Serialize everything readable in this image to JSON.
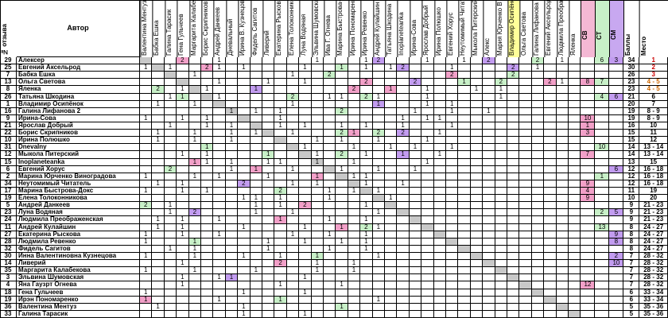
{
  "header": {
    "num_label": "№ отзыва",
    "author_label": "Автор",
    "score_cols": [
      "СВ",
      "СТ",
      "СМ"
    ],
    "points_label": "Баллы",
    "place_label": "Место"
  },
  "judges": [
    "Валентина Ментуз",
    "Бабка Ешка",
    "Галина Тарасик",
    "Гена Гульчеев",
    "Маргарита Калабекова",
    "Борис Скрипников",
    "Андрей Данкеев",
    "Дневальный",
    "Ирина В. Кузнецова",
    "Фидель Сагитов",
    "Ливерий",
    "Екатерина Рыскова",
    "Елена Толоконникова",
    "Луна Водяная",
    "Эльвина Шумовская",
    "Ива Г. Огнева",
    "Марина Быстрова-Д",
    "Ирина Пономаренко",
    "Ирина Ревенко",
    "Андрей Кулайшин",
    "Татьяна Шкодина",
    "Inoplaneteanka",
    "Ирина-Сова",
    "Ярослав Добрый",
    "Ирина Полюшко",
    "Евгений Хорус",
    "Неутомимый Читат",
    "Мыкола Питерский",
    "Алекс",
    "Мария Юрченко В",
    "Владимир Осипёнок",
    "Ольга Светова",
    "Галина Лифанова",
    "Евгений Аксельрод",
    "Людмила Преображ",
    "Яленка"
  ],
  "colors": {
    "pink": "#f2a0c8",
    "lavender": "#c29cf0",
    "green": "#c8f0c8",
    "gray": "#c8c8c8",
    "yellow_header": "#ffff99",
    "cv_header": "#f4b8d4",
    "ct_header": "#c8f0c8",
    "cm_header": "#c8a8f0",
    "orange_place": "#cc6600",
    "red_place": "#cc0000"
  },
  "rows": [
    {
      "num": "29",
      "author": "Алексер",
      "points": "34",
      "place": "1",
      "cv": "",
      "ct": "6",
      "cm": "3"
    },
    {
      "num": "25",
      "author": "Евгений Аксельрод",
      "points": "30",
      "place": "2",
      "cv": "",
      "ct": "",
      "cm": ""
    },
    {
      "num": "7",
      "author": "Бабка Ешка",
      "points": "26",
      "place": "3",
      "cv": "",
      "ct": "",
      "cm": ""
    },
    {
      "num": "13",
      "author": "Ольга Светова",
      "points": "23",
      "place": "4 - 5",
      "cv": "8",
      "ct": "7",
      "cm": ""
    },
    {
      "num": "8",
      "author": "Яленка",
      "points": "23",
      "place": "4 - 5",
      "cv": "",
      "ct": "",
      "cm": ""
    },
    {
      "num": "26",
      "author": "Татьяна Шкодина",
      "points": "21",
      "place": "6",
      "cv": "",
      "ct": "4",
      "cm": "6"
    },
    {
      "num": "1",
      "author": "Владимир Осипёнок",
      "points": "20",
      "place": "7",
      "cv": "",
      "ct": "",
      "cm": ""
    },
    {
      "num": "16",
      "author": "Галина Лифанова 2",
      "points": "19",
      "place": "8 - 9",
      "cv": "",
      "ct": "",
      "cm": ""
    },
    {
      "num": "9",
      "author": "Ирина-Сова",
      "points": "19",
      "place": "8 - 9",
      "cv": "10",
      "ct": "",
      "cm": ""
    },
    {
      "num": "21",
      "author": "Ярослав Добрый",
      "points": "16",
      "place": "10",
      "cv": "1",
      "ct": "",
      "cm": ""
    },
    {
      "num": "22",
      "author": "Борис Скрипников",
      "points": "15",
      "place": "11",
      "cv": "3",
      "ct": "",
      "cm": ""
    },
    {
      "num": "10",
      "author": "Ирина Полюшко",
      "points": "15",
      "place": "12",
      "cv": "",
      "ct": "",
      "cm": ""
    },
    {
      "num": "31",
      "author": "Dnevalny",
      "points": "14",
      "place": "13 - 14",
      "cv": "",
      "ct": "10",
      "cm": ""
    },
    {
      "num": "12",
      "author": "Мыкола Питерский",
      "points": "14",
      "place": "13 - 14",
      "cv": "7",
      "ct": "",
      "cm": ""
    },
    {
      "num": "15",
      "author": "Inoplaneteanka",
      "points": "13",
      "place": "15",
      "cv": "",
      "ct": "",
      "cm": ""
    },
    {
      "num": "6",
      "author": "Евгений Хорус",
      "points": "12",
      "place": "16 - 18",
      "cv": "",
      "ct": "",
      "cm": "6"
    },
    {
      "num": "2",
      "author": "Марина Юрченко Виноградова",
      "points": "12",
      "place": "16 - 18",
      "cv": "",
      "ct": "1",
      "cm": ""
    },
    {
      "num": "34",
      "author": "Неутомимый Читатель",
      "points": "12",
      "place": "16 - 18",
      "cv": "9",
      "ct": "",
      "cm": ""
    },
    {
      "num": "17",
      "author": "Марина Быстрова-Докс",
      "points": "11",
      "place": "19",
      "cv": "4",
      "ct": "",
      "cm": ""
    },
    {
      "num": "19",
      "author": "Елена Толоконникова",
      "points": "10",
      "place": "20",
      "cv": "9",
      "ct": "",
      "cm": ""
    },
    {
      "num": "5",
      "author": "Андрей Данкеев",
      "points": "9",
      "place": "21 - 23",
      "cv": "",
      "ct": "",
      "cm": ""
    },
    {
      "num": "23",
      "author": "Луна Водяная",
      "points": "9",
      "place": "21 - 23",
      "cv": "",
      "ct": "2",
      "cm": "5"
    },
    {
      "num": "24",
      "author": "Людмила Преображенская",
      "points": "9",
      "place": "21 - 23",
      "cv": "",
      "ct": "",
      "cm": ""
    },
    {
      "num": "11",
      "author": "Андрей Кулайшин",
      "points": "8",
      "place": "24 - 27",
      "cv": "",
      "ct": "13",
      "cm": ""
    },
    {
      "num": "27",
      "author": "Екатерина Рыскова",
      "points": "8",
      "place": "24 - 27",
      "cv": "",
      "ct": "",
      "cm": "9"
    },
    {
      "num": "28",
      "author": "Людмила Ревенко",
      "points": "8",
      "place": "24 - 27",
      "cv": "",
      "ct": "",
      "cm": "8"
    },
    {
      "num": "32",
      "author": "Фидель Сагитов",
      "points": "8",
      "place": "24 - 27",
      "cv": "",
      "ct": "",
      "cm": ""
    },
    {
      "num": "30",
      "author": "Инна Валентиновна Кузнецова",
      "points": "7",
      "place": "28 - 32",
      "cv": "",
      "ct": "",
      "cm": "2"
    },
    {
      "num": "14",
      "author": "Ливерий",
      "points": "7",
      "place": "28 - 32",
      "cv": "",
      "ct": "",
      "cm": "10"
    },
    {
      "num": "35",
      "author": "Маргарита Калабекова",
      "points": "7",
      "place": "28 - 32",
      "cv": "",
      "ct": "",
      "cm": ""
    },
    {
      "num": "3",
      "author": "Эльвина Шумовская",
      "points": "7",
      "place": "28 - 32",
      "cv": "",
      "ct": "",
      "cm": ""
    },
    {
      "num": "4",
      "author": "Яна Гаузрт Огнева",
      "points": "7",
      "place": "28 - 32",
      "cv": "12",
      "ct": "",
      "cm": ""
    },
    {
      "num": "18",
      "author": "Гена Гульчеев",
      "points": "6",
      "place": "33 - 34",
      "cv": "",
      "ct": "",
      "cm": ""
    },
    {
      "num": "19",
      "author": "Ирэн Пономаренко",
      "points": "6",
      "place": "33 - 34",
      "cv": "",
      "ct": "",
      "cm": ""
    },
    {
      "num": "36",
      "author": "Валентина Ментуз",
      "points": "5",
      "place": "35 - 36",
      "cv": "",
      "ct": "",
      "cm": ""
    },
    {
      "num": "33",
      "author": "Галина Тарасик",
      "points": "5",
      "place": "35 - 36",
      "cv": "",
      "ct": "",
      "cm": ""
    }
  ],
  "grid": [
    "...2..1.......1...12...1..1.2...2.1..",
    "1.1..21.1....1..1.1.12...1....2.1.",
    "....1.......1..2.........2....2...",
    "......1...1..1....2...2...1..2...21",
    ".2.1.1...1.......2..1..1...1.1.",
    "..11..1.....2..11.21...1.....1...",
    ".1..1.......1......1...1.1.....",
    ".......1.1.1....2.....1..1..1",
    "1..1.1.....1.........1.11....",
    "..1..1.1...1.1..1.1..1...1..",
    ".1..1..1.1..1...21.2.2..1.",
    ".1..1..1......1.1..1...1..",
    ".....1.......1...1..1.1..1",
    "...1.1....1...1.2.1..1..1",
    "....11.1..11..1..1.....1",
    "..2....1.1..1...1..1..1",
    "1...1.1...1...1..11...",
    ".1.1....2...1.1...1..1",
    "1..1.1.....2...1.1.1..",
    "........11.1...1....1",
    "2.1......1.1.2....1..",
    "..1.2....1..1......1",
    ".1.1..1....1...1..1.",
    ".1.1....1....1..1.21",
    "1..1..1.....1..1..1.",
    "1...1.....1..1..1.1.",
    "..1.1.....1....1..1.",
    "1...1...1..1..1....1",
    "...1.......2..1..1..",
    "1...1....1....1..1..",
    "...1..11.....1......",
    "...1.......1....1...",
    "1.......1....1......",
    "1.....1....1.......1",
    ".1......1.......1...",
    "........1....1......"
  ]
}
